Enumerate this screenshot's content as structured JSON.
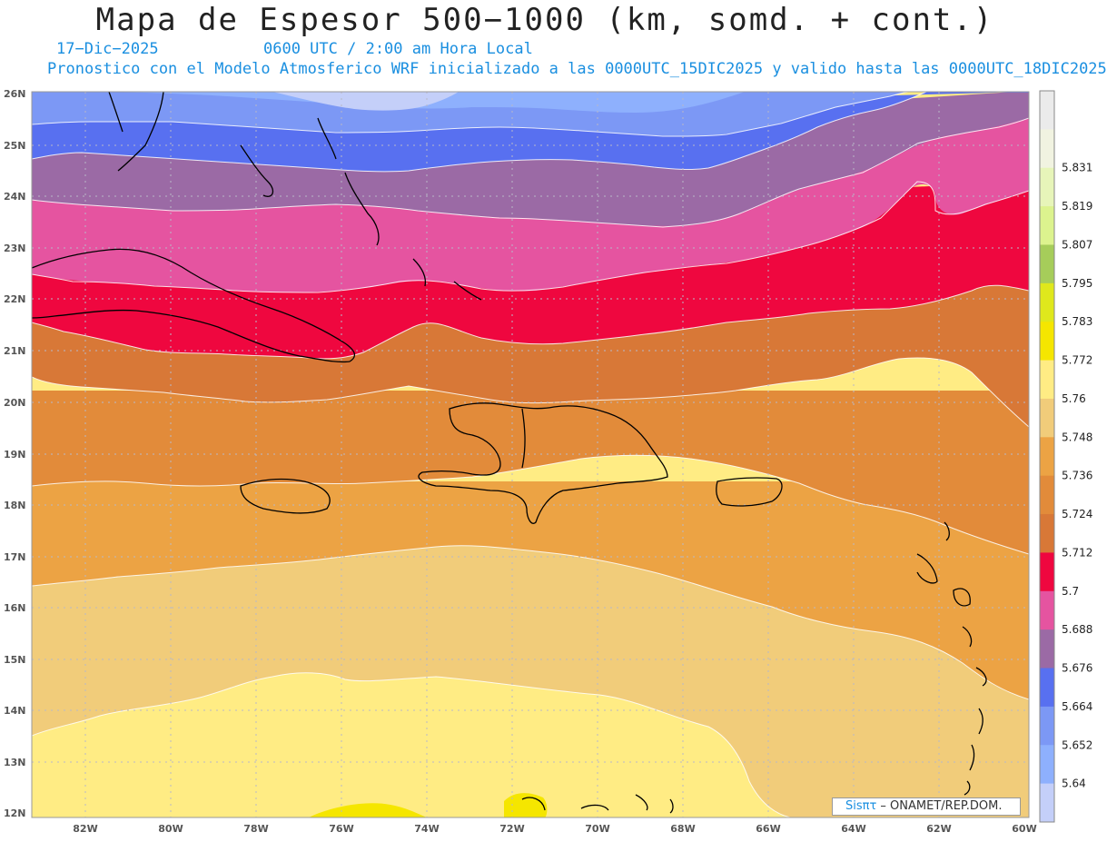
{
  "header": {
    "title": "Mapa de Espesor 500−1000 (km, somd. + cont.)",
    "date": "17−Dic−2025",
    "time": "0600 UTC / 2:00 am Hora Local",
    "description": "Pronostico con el Modelo Atmosferico WRF inicializado a las 0000UTC_15DIC2025 y valido hasta las  0000UTC_18DIC2025"
  },
  "map": {
    "lat_labels": [
      "26N",
      "25N",
      "24N",
      "23N",
      "22N",
      "21N",
      "20N",
      "19N",
      "18N",
      "17N",
      "16N",
      "15N",
      "14N",
      "13N",
      "12N"
    ],
    "lon_labels": [
      "82W",
      "80W",
      "78W",
      "76W",
      "74W",
      "72W",
      "70W",
      "68W",
      "66W",
      "64W",
      "62W",
      "60W"
    ],
    "lat_range": [
      12,
      26
    ],
    "lon_range": [
      -83.25,
      -60
    ],
    "gridlines": true,
    "colors": {
      "background": "#ffffff",
      "gridline": "#b8b8c8",
      "coastline": "#000000",
      "contour": "#ffffff"
    }
  },
  "colorbar": {
    "levels": [
      {
        "label": "",
        "color": "#ebebeb"
      },
      {
        "label": "5.831",
        "color": "#f1f3e1"
      },
      {
        "label": "5.819",
        "color": "#e7f5b9"
      },
      {
        "label": "5.807",
        "color": "#dcf38e"
      },
      {
        "label": "5.795",
        "color": "#a6cd5a"
      },
      {
        "label": "5.783",
        "color": "#dfe81c"
      },
      {
        "label": "5.772",
        "color": "#f5e600"
      },
      {
        "label": "5.76",
        "color": "#ffec84"
      },
      {
        "label": "5.748",
        "color": "#f1cc7a"
      },
      {
        "label": "5.736",
        "color": "#eca344"
      },
      {
        "label": "5.724",
        "color": "#e28b3a"
      },
      {
        "label": "5.712",
        "color": "#d87837"
      },
      {
        "label": "5.7",
        "color": "#ef073f"
      },
      {
        "label": "5.688",
        "color": "#e554a0"
      },
      {
        "label": "5.676",
        "color": "#9b6aa5"
      },
      {
        "label": "5.664",
        "color": "#5870f0"
      },
      {
        "label": "5.652",
        "color": "#7c98f5"
      },
      {
        "label": "5.64",
        "color": "#8eb0fd"
      },
      {
        "label": "",
        "color": "#c4cff9"
      }
    ]
  },
  "credit": {
    "logo_text": "Sisπτ",
    "text": " –  ONAMET/REP.DOM."
  }
}
